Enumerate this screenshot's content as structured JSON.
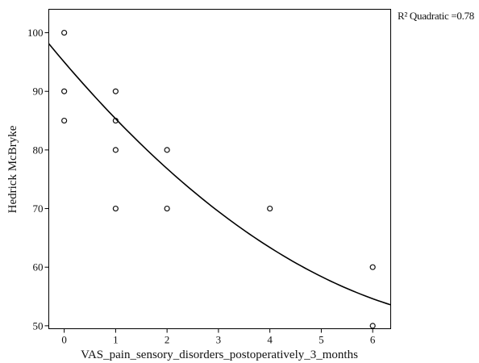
{
  "chart_data": {
    "type": "scatter",
    "title": "",
    "xlabel": "VAS_pain_sensory_disorders_postoperatively_3_months",
    "ylabel": "Hedrick  McBryke",
    "xlim": [
      -0.3,
      6.35
    ],
    "ylim": [
      49.5,
      104
    ],
    "x_ticks": [
      0,
      1,
      2,
      3,
      4,
      5,
      6
    ],
    "y_ticks": [
      50,
      60,
      70,
      80,
      90,
      100
    ],
    "grid": false,
    "legend": "none",
    "points": [
      {
        "x": 0,
        "y": 100
      },
      {
        "x": 0,
        "y": 90
      },
      {
        "x": 0,
        "y": 85
      },
      {
        "x": 1,
        "y": 90
      },
      {
        "x": 1,
        "y": 85
      },
      {
        "x": 1,
        "y": 80
      },
      {
        "x": 1,
        "y": 70
      },
      {
        "x": 2,
        "y": 80
      },
      {
        "x": 2,
        "y": 70
      },
      {
        "x": 4,
        "y": 70
      },
      {
        "x": 6,
        "y": 60
      },
      {
        "x": 6,
        "y": 50
      }
    ],
    "fit": {
      "type": "quadratic",
      "coefficients": [
        95.0,
        -10.27,
        0.59
      ],
      "annotation": "R² Quadratic =0.78"
    },
    "colors": {
      "points": "#111111",
      "line": "#000000",
      "axis": "#000000"
    }
  }
}
